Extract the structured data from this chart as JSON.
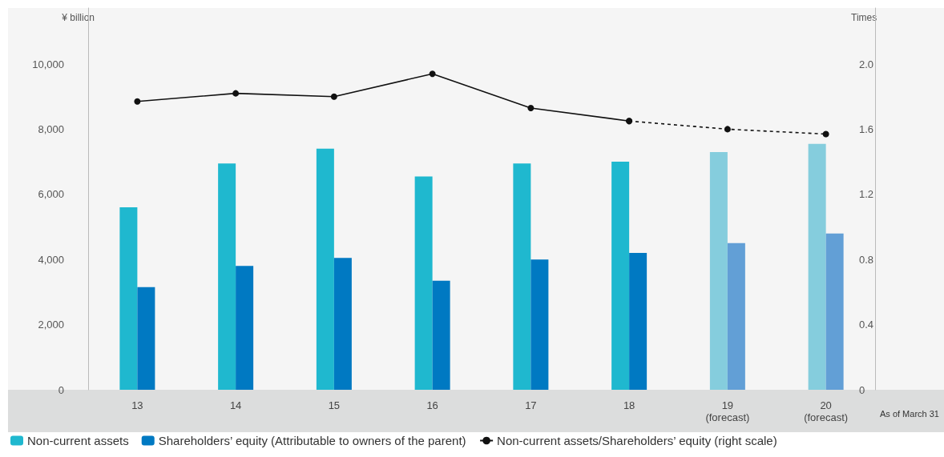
{
  "chart_data": {
    "type": "bar",
    "ylabel": "¥ billion",
    "y2label": "Times",
    "xlabel": "As of March 31",
    "categories": [
      "13",
      "14",
      "15",
      "16",
      "17",
      "18",
      "19\n(forecast)",
      "20\n(forecast)"
    ],
    "series": [
      {
        "name": "Non-current assets",
        "color": "#1fb8cf",
        "colors": [
          "#1fb8cf",
          "#1fb8cf",
          "#1fb8cf",
          "#1fb8cf",
          "#1fb8cf",
          "#1fb8cf",
          "#85cddd",
          "#85cddd"
        ],
        "values": [
          5600,
          6950,
          7400,
          6550,
          6950,
          7000,
          7300,
          7550
        ]
      },
      {
        "name": "Shareholders’ equity (Attributable to owners of the parent)",
        "color": "#0079c2",
        "colors": [
          "#0079c2",
          "#0079c2",
          "#0079c2",
          "#0079c2",
          "#0079c2",
          "#0079c2",
          "#629fd6",
          "#629fd6"
        ],
        "values": [
          3150,
          3800,
          4050,
          3350,
          4000,
          4200,
          4500,
          4800
        ]
      },
      {
        "name": "Non-current assets/Shareholders’ equity (right scale)",
        "type": "line",
        "axis": "y2",
        "color": "#111111",
        "line_style": "solid",
        "values": [
          1.77,
          1.82,
          1.8,
          1.94,
          1.73,
          1.65,
          null,
          null
        ]
      },
      {
        "type": "line",
        "axis": "y2",
        "color": "#111111",
        "line_style": "dashed",
        "values": [
          null,
          null,
          null,
          null,
          null,
          1.65,
          1.6,
          1.57
        ]
      }
    ],
    "ylim": [
      0,
      11720
    ],
    "yticks": [
      0,
      {
        "value": 2000,
        "label": "2,000"
      },
      {
        "value": 4000,
        "label": "4,000"
      },
      {
        "value": 6000,
        "label": "6,000"
      },
      {
        "value": 8000,
        "label": "8,000"
      },
      {
        "value": 10000,
        "label": "10,000"
      }
    ],
    "y2lim": [
      0,
      2.344
    ],
    "y2ticks": [
      {
        "value": 0,
        "label": "0"
      },
      {
        "value": 0.4,
        "label": "0.4"
      },
      {
        "value": 0.8,
        "label": "0.8"
      },
      {
        "value": 1.2,
        "label": "1.2"
      },
      {
        "value": 1.6,
        "label": "1.6"
      },
      {
        "value": 2,
        "label": "2.0"
      }
    ],
    "marker": "circle",
    "grid": false,
    "legend": "bottom left"
  }
}
